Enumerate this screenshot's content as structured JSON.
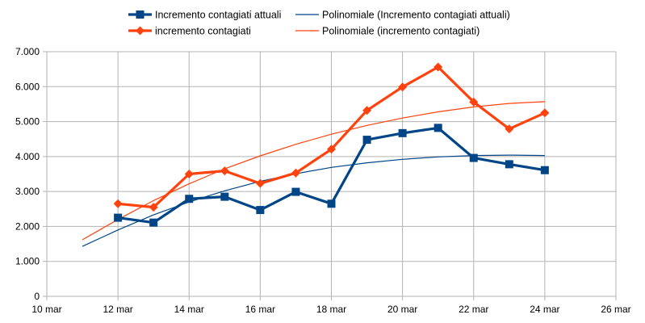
{
  "chart_data": {
    "type": "line",
    "title": "",
    "xlabel": "",
    "ylabel": "",
    "xlim": [
      10,
      26
    ],
    "ylim": [
      0,
      7000
    ],
    "x_ticks": [
      10,
      12,
      14,
      16,
      18,
      20,
      22,
      24,
      26
    ],
    "x_tick_labels": [
      "10 mar",
      "12 mar",
      "14 mar",
      "16 mar",
      "18 mar",
      "20 mar",
      "22 mar",
      "24 mar",
      "26 mar"
    ],
    "y_ticks": [
      0,
      1000,
      2000,
      3000,
      4000,
      5000,
      6000,
      7000
    ],
    "y_tick_labels": [
      "0",
      "1.000",
      "2.000",
      "3.000",
      "4.000",
      "5.000",
      "6.000",
      "7.000"
    ],
    "grid": true,
    "legend_position": "top",
    "series": [
      {
        "name": "Incremento contagiati attuali",
        "color": "#004586",
        "marker": "square",
        "x": [
          12,
          13,
          14,
          15,
          16,
          17,
          18,
          19,
          20,
          21,
          22,
          23,
          24
        ],
        "values": [
          2250,
          2110,
          2790,
          2850,
          2470,
          2990,
          2650,
          4480,
          4670,
          4820,
          3960,
          3780,
          3610
        ]
      },
      {
        "name": "incremento contagiati",
        "color": "#ff420e",
        "marker": "diamond",
        "x": [
          12,
          13,
          14,
          15,
          16,
          17,
          18,
          19,
          20,
          21,
          22,
          23,
          24
        ],
        "values": [
          2650,
          2550,
          3500,
          3590,
          3230,
          3530,
          4210,
          5320,
          5990,
          6560,
          5560,
          4790,
          5250
        ]
      }
    ],
    "trendlines": [
      {
        "name": "Polinomiale (Incremento contagiati attuali)",
        "color": "#004586",
        "x": [
          11,
          12,
          13,
          14,
          15,
          16,
          17,
          18,
          19,
          20,
          21,
          22,
          23,
          24
        ],
        "values": [
          1430,
          1900,
          2330,
          2700,
          3020,
          3290,
          3510,
          3690,
          3820,
          3920,
          3990,
          4030,
          4040,
          4030
        ]
      },
      {
        "name": "Polinomiale (incremento contagiati)",
        "color": "#ff420e",
        "x": [
          11,
          12,
          13,
          14,
          15,
          16,
          17,
          18,
          19,
          20,
          21,
          22,
          23,
          24
        ],
        "values": [
          1620,
          2200,
          2740,
          3220,
          3650,
          4020,
          4350,
          4640,
          4890,
          5100,
          5280,
          5420,
          5520,
          5570
        ]
      }
    ]
  }
}
